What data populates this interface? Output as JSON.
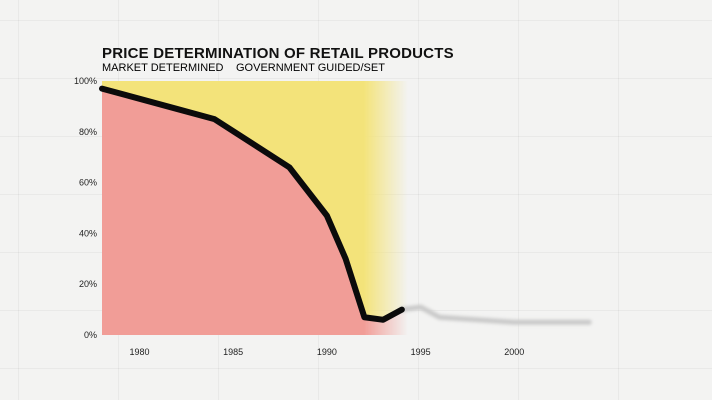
{
  "chart_data": {
    "type": "area",
    "title": "PRICE DETERMINATION OF RETAIL PRODUCTS",
    "series": [
      {
        "name": "MARKET DETERMINED",
        "color": "#f3e37a"
      },
      {
        "name": "GOVERNMENT GUIDED/SET",
        "color": "#e0252b",
        "area_color": "#f19d97"
      }
    ],
    "x": [
      1978,
      1982,
      1984,
      1988,
      1990,
      1991,
      1992,
      1993,
      1994
    ],
    "government_values": [
      97,
      89,
      85,
      66,
      47,
      30,
      7,
      6,
      10
    ],
    "faded_continuation": {
      "x": [
        1994,
        1995,
        1996,
        1998,
        2000,
        2002,
        2004
      ],
      "values": [
        10,
        11,
        7,
        6,
        5,
        5,
        5
      ]
    },
    "xlim": [
      1978,
      2005
    ],
    "ylim": [
      0,
      100
    ],
    "x_ticks": [
      "1980",
      "1985",
      "1990",
      "1995",
      "2000"
    ],
    "y_ticks": [
      "0%",
      "20%",
      "40%",
      "60%",
      "80%",
      "100%"
    ],
    "grid": false
  }
}
